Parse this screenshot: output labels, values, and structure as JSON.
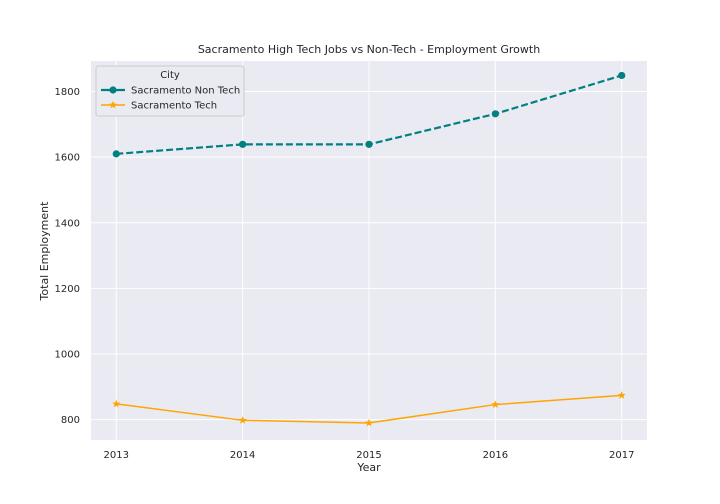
{
  "chart_data": {
    "type": "line",
    "title": "Sacramento High Tech Jobs vs Non-Tech - Employment Growth",
    "xlabel": "Year",
    "ylabel": "Total Employment",
    "x": [
      "2013",
      "2014",
      "2015",
      "2016",
      "2017"
    ],
    "xlim": [
      2012.8,
      2017.2
    ],
    "ylim": [
      738,
      1893
    ],
    "yticks": [
      800,
      1000,
      1200,
      1400,
      1600,
      1800
    ],
    "grid": true,
    "legend": {
      "title": "City",
      "placement": "top-left"
    },
    "series": [
      {
        "name": "Sacramento Non Tech",
        "values": [
          1610,
          1639,
          1639,
          1732,
          1849
        ],
        "color": "#008080",
        "line_style": "dashed",
        "marker": "circle"
      },
      {
        "name": "Sacramento Tech",
        "values": [
          848,
          798,
          790,
          846,
          874
        ],
        "color": "#ffa500",
        "line_style": "solid",
        "marker": "star"
      }
    ]
  }
}
